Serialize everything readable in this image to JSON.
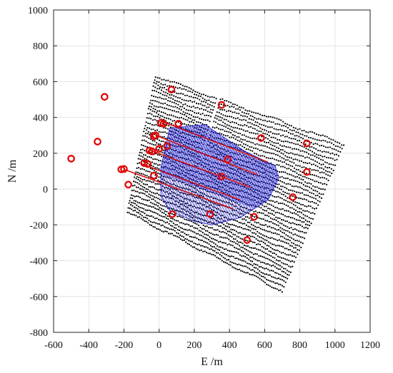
{
  "chart_data": {
    "type": "scatter",
    "xlabel": "E /m",
    "ylabel": "N /m",
    "xlim": [
      -600,
      1200
    ],
    "ylim": [
      -800,
      1000
    ],
    "xticks": [
      -600,
      -400,
      -200,
      0,
      200,
      400,
      600,
      800,
      1000,
      1200
    ],
    "yticks": [
      -800,
      -600,
      -400,
      -200,
      0,
      200,
      400,
      600,
      800,
      1000
    ],
    "grid": true,
    "survey_grid": {
      "description_color": "#000000",
      "line_count": 37,
      "line_angle_deg": -17,
      "corners": [
        [
          -180,
          -130
        ],
        [
          700,
          -570
        ],
        [
          1050,
          250
        ],
        [
          -20,
          630
        ]
      ]
    },
    "inversion_mesh": {
      "color": "#1f1fd0",
      "outline": [
        [
          60,
          340
        ],
        [
          260,
          360
        ],
        [
          490,
          210
        ],
        [
          660,
          130
        ],
        [
          680,
          60
        ],
        [
          620,
          -60
        ],
        [
          460,
          -160
        ],
        [
          300,
          -200
        ],
        [
          200,
          -180
        ],
        [
          60,
          -120
        ],
        [
          10,
          -40
        ],
        [
          10,
          120
        ]
      ]
    },
    "red_lines": {
      "color": "#d01010",
      "segments": [
        [
          [
            10,
            380
          ],
          [
            620,
            150
          ]
        ],
        [
          [
            -20,
            300
          ],
          [
            560,
            80
          ]
        ],
        [
          [
            -60,
            220
          ],
          [
            520,
            10
          ]
        ],
        [
          [
            -100,
            140
          ],
          [
            460,
            -60
          ]
        ],
        [
          [
            -200,
            110
          ],
          [
            420,
            -110
          ]
        ]
      ]
    },
    "stations": {
      "color": "#e00000",
      "points": [
        [
          -500,
          170
        ],
        [
          -350,
          265
        ],
        [
          -310,
          515
        ],
        [
          -215,
          110
        ],
        [
          -200,
          112
        ],
        [
          -175,
          25
        ],
        [
          -85,
          145
        ],
        [
          -65,
          140
        ],
        [
          -55,
          215
        ],
        [
          -40,
          210
        ],
        [
          -30,
          295
        ],
        [
          -20,
          300
        ],
        [
          -30,
          75
        ],
        [
          0,
          225
        ],
        [
          10,
          370
        ],
        [
          25,
          365
        ],
        [
          45,
          240
        ],
        [
          70,
          555
        ],
        [
          75,
          -140
        ],
        [
          110,
          365
        ],
        [
          290,
          -140
        ],
        [
          355,
          470
        ],
        [
          355,
          70
        ],
        [
          390,
          165
        ],
        [
          500,
          -285
        ],
        [
          540,
          -155
        ],
        [
          580,
          285
        ],
        [
          760,
          -45
        ],
        [
          840,
          255
        ],
        [
          840,
          95
        ]
      ]
    }
  }
}
